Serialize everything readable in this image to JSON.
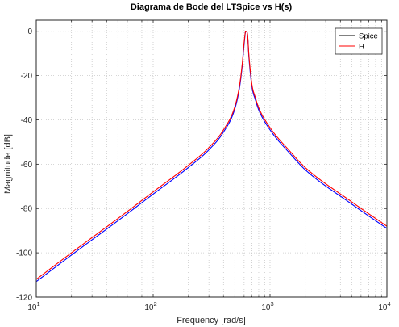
{
  "chart_data": {
    "type": "line",
    "title": "Diagrama de Bode del LTSpice vs H(s)",
    "xlabel": "Frequency [rad/s]",
    "ylabel": "Magnitude [dB]",
    "xscale": "log",
    "xlim": [
      10,
      10000
    ],
    "ylim": [
      -120,
      5
    ],
    "xticks": [
      10,
      100,
      1000,
      10000
    ],
    "xtick_labels": [
      {
        "base": "10",
        "exp": "1"
      },
      {
        "base": "10",
        "exp": "2"
      },
      {
        "base": "10",
        "exp": "3"
      },
      {
        "base": "10",
        "exp": "4"
      }
    ],
    "yticks": [
      0,
      -20,
      -40,
      -60,
      -80,
      -100,
      -120
    ],
    "ytick_labels": [
      "0",
      "-20",
      "-40",
      "-60",
      "-80",
      "-100",
      "-120"
    ],
    "grid": true,
    "legend_position": "top-right",
    "series": [
      {
        "name": "Spice",
        "color": "#0000ff",
        "legend_color": "#000000",
        "x": [
          10,
          20,
          50,
          100,
          200,
          300,
          400,
          500,
          550,
          580,
          600,
          620,
          640,
          660,
          700,
          750,
          800,
          1000,
          1500,
          2000,
          5000,
          10000
        ],
        "y": [
          -113,
          -101,
          -85.5,
          -73.5,
          -61.5,
          -53.5,
          -45.5,
          -35,
          -25,
          -15,
          -6,
          0,
          -1,
          -12,
          -25,
          -31,
          -35.5,
          -44.5,
          -55.5,
          -62.5,
          -78,
          -89
        ]
      },
      {
        "name": "H",
        "color": "#ff0000",
        "legend_color": "#ff0000",
        "x": [
          10,
          20,
          50,
          100,
          200,
          300,
          400,
          500,
          550,
          580,
          600,
          620,
          640,
          660,
          700,
          750,
          800,
          1000,
          1500,
          2000,
          5000,
          10000
        ],
        "y": [
          -112,
          -100,
          -84.5,
          -72.5,
          -60.5,
          -52.5,
          -44.5,
          -34,
          -24,
          -14,
          -5,
          0,
          -1,
          -11,
          -24,
          -30,
          -34.5,
          -43.5,
          -54.5,
          -61.5,
          -77,
          -88
        ]
      }
    ]
  }
}
